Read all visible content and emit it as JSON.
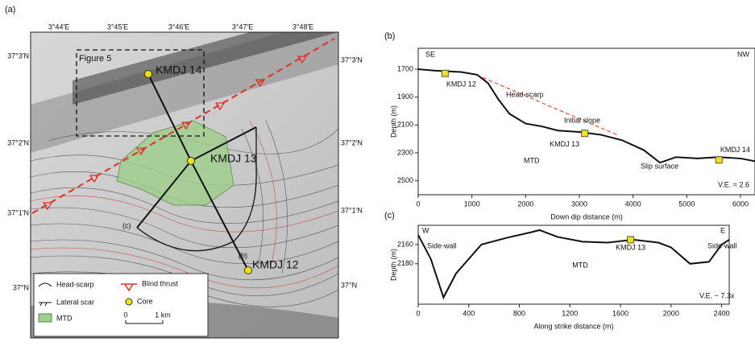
{
  "map": {
    "panel_label": "(a)",
    "lon_labels": [
      "3°44'E",
      "3°45'E",
      "3°46'E",
      "3°47'E",
      "3°48'E"
    ],
    "lat_labels": [
      "37°3'N",
      "37°2'N",
      "37°1'N",
      "37°N"
    ],
    "figure_box": "Figure 5",
    "cores": [
      "KMDJ 14",
      "KMDJ 13",
      "KMDJ 12"
    ],
    "profile_labels": [
      "(b)",
      "(c)"
    ],
    "legend": {
      "head_scarp": "Head-scarp",
      "blind_thrust": "Blind thrust",
      "lateral_scar": "Lateral scar",
      "core": "Core",
      "mtd": "MTD",
      "scale_start": "0",
      "scale_end": "1 km"
    }
  },
  "chart_data": [
    {
      "type": "line",
      "panel_label": "(b)",
      "x_label": "Down dip distance (m)",
      "y_label": "Depth (m)",
      "xlim": [
        0,
        6270
      ],
      "xticks": [
        0,
        1000,
        2000,
        3000,
        4000,
        5000,
        6000
      ],
      "ylim": [
        1550,
        2600
      ],
      "yticks": [
        1700,
        1900,
        2100,
        2300,
        2500
      ],
      "y_inverted": true,
      "profile": {
        "x": [
          0,
          300,
          800,
          1100,
          1300,
          1500,
          1700,
          2000,
          2300,
          2600,
          3000,
          3400,
          3800,
          4200,
          4500,
          4800,
          5200,
          5600,
          6000,
          6270
        ],
        "values": [
          1700,
          1710,
          1720,
          1740,
          1800,
          1920,
          2020,
          2090,
          2110,
          2140,
          2150,
          2170,
          2210,
          2280,
          2370,
          2330,
          2340,
          2330,
          2340,
          2360
        ]
      },
      "initial_slope": {
        "x": [
          1200,
          3700
        ],
        "values": [
          1760,
          2170
        ]
      },
      "cores": {
        "labels": [
          "KMDJ 12",
          "KMDJ 13",
          "KMDJ 14"
        ],
        "x": [
          500,
          3100,
          5600
        ],
        "values": [
          1730,
          2160,
          2350
        ]
      },
      "annotations": [
        "SE",
        "NW",
        "Head-scarp",
        "Initial slope",
        "MTD",
        "Slip surface",
        "V.E. = 2.6"
      ]
    },
    {
      "type": "line",
      "panel_label": "(c)",
      "x_label": "Along strike distance  (m)",
      "y_label": "Depth (m)",
      "xlim": [
        0,
        2460
      ],
      "xticks": [
        0,
        400,
        800,
        1200,
        1600,
        2000,
        2400
      ],
      "ylim": [
        2140,
        2222
      ],
      "yticks": [
        2160,
        2180
      ],
      "y_inverted": true,
      "profile": {
        "x": [
          0,
          100,
          200,
          300,
          500,
          700,
          900,
          960,
          1100,
          1300,
          1500,
          1700,
          1900,
          2000,
          2150,
          2300,
          2400,
          2460
        ],
        "values": [
          2150,
          2175,
          2215,
          2190,
          2160,
          2153,
          2147,
          2145,
          2152,
          2157,
          2158,
          2155,
          2158,
          2163,
          2180,
          2178,
          2160,
          2155
        ]
      },
      "cores": {
        "labels": [
          "KMDJ 13"
        ],
        "x": [
          1680
        ],
        "values": [
          2155
        ]
      },
      "annotations": [
        "W",
        "E",
        "Side-wall",
        "Side-wall",
        "MTD",
        "V.E. ~ 7.3x"
      ]
    }
  ]
}
